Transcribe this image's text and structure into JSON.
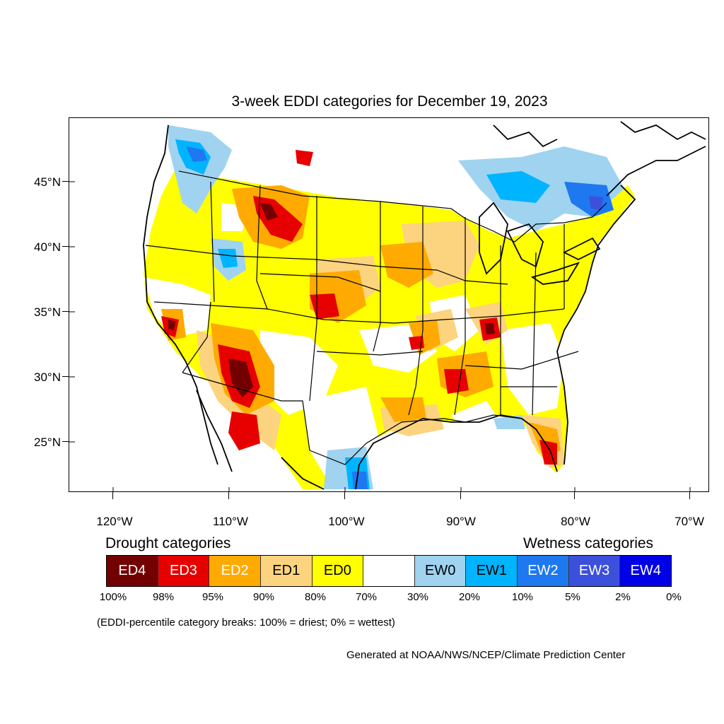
{
  "title": "3-week EDDI categories for December 19, 2023",
  "latitude_labels": [
    "45°N",
    "40°N",
    "35°N",
    "30°N",
    "25°N"
  ],
  "longitude_labels": [
    "120°W",
    "110°W",
    "100°W",
    "90°W",
    "80°W",
    "70°W"
  ],
  "legend": {
    "drought_heading": "Drought categories",
    "wetness_heading": "Wetness categories",
    "categories": [
      {
        "label": "ED4",
        "color": "#730000",
        "text_color": "#ffffff"
      },
      {
        "label": "ED3",
        "color": "#e60000",
        "text_color": "#ffffff"
      },
      {
        "label": "ED2",
        "color": "#ffaa00",
        "text_color": "#ffffff"
      },
      {
        "label": "ED1",
        "color": "#fcd37f",
        "text_color": "#000000"
      },
      {
        "label": "ED0",
        "color": "#ffff00",
        "text_color": "#000000"
      },
      {
        "label": "",
        "color": "#ffffff",
        "text_color": "#000000"
      },
      {
        "label": "EW0",
        "color": "#9fd3f0",
        "text_color": "#000000"
      },
      {
        "label": "EW1",
        "color": "#00b4ff",
        "text_color": "#000000"
      },
      {
        "label": "EW2",
        "color": "#1e78f0",
        "text_color": "#ffffff"
      },
      {
        "label": "EW3",
        "color": "#3c50dc",
        "text_color": "#ffffff"
      },
      {
        "label": "EW4",
        "color": "#0000e6",
        "text_color": "#ffffff"
      }
    ],
    "percentiles": [
      "100%",
      "98%",
      "95%",
      "90%",
      "80%",
      "70%",
      "30%",
      "20%",
      "10%",
      "5%",
      "2%",
      "0%"
    ]
  },
  "note": "(EDDI-percentile category breaks: 100% = driest; 0% = wettest)",
  "credit": "Generated at NOAA/NWS/NCEP/Climate Prediction Center"
}
